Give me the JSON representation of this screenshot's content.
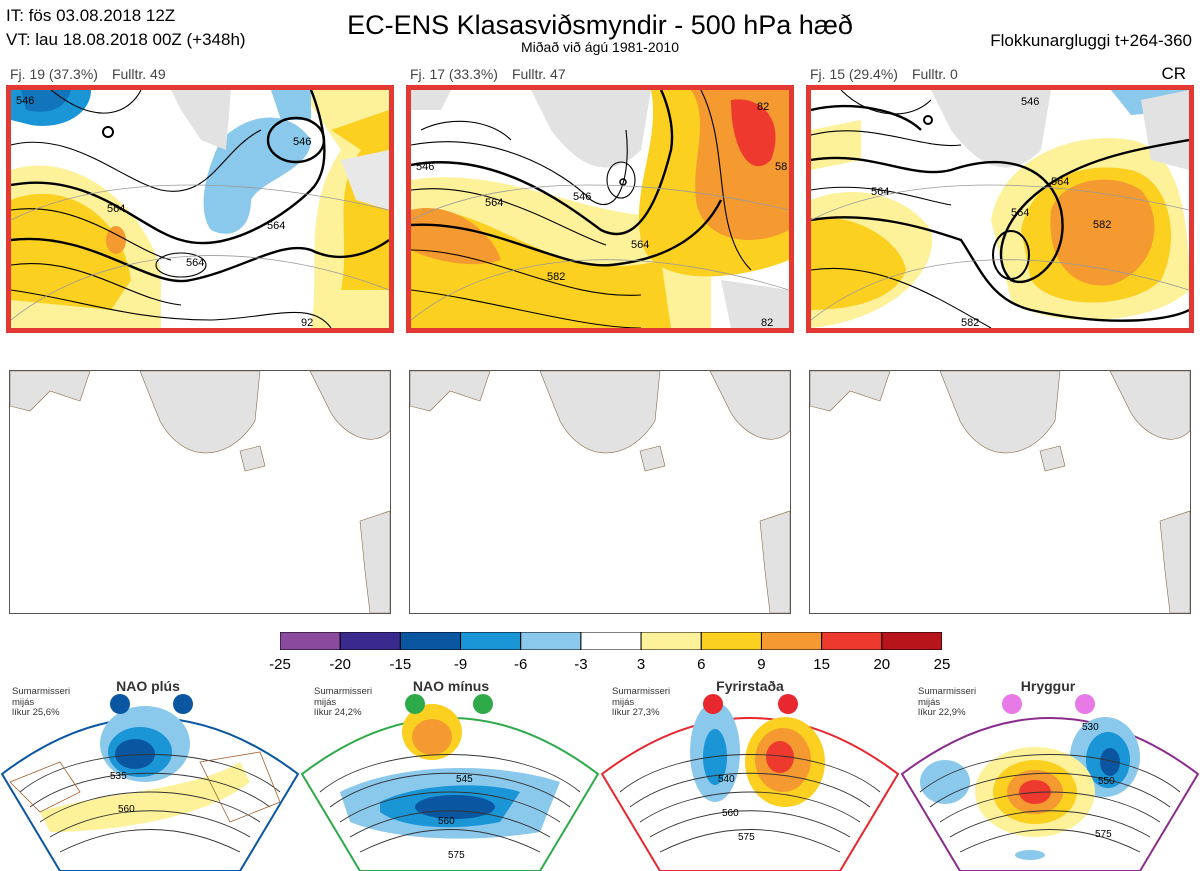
{
  "header": {
    "it_line": "IT: fös 03.08.2018 12Z",
    "vt_line": "VT: lau 18.08.2018 00Z  (+348h)",
    "title": "EC-ENS Klasasviðsmyndir - 500 hPa hæð",
    "subtitle": "Miðað við ágú 1981-2010",
    "window": "Flokkunargluggi t+264-360",
    "cr": "CR"
  },
  "clusters": [
    {
      "fj": "Fj. 19 (37.3%)",
      "fulltr": "Fulltr. 49",
      "labels": [
        "546",
        "564",
        "564",
        "564",
        "546",
        "92"
      ]
    },
    {
      "fj": "Fj. 17 (33.3%)",
      "fulltr": "Fulltr. 47",
      "labels": [
        "546",
        "564",
        "546",
        "564",
        "582",
        "82",
        "58",
        "82"
      ]
    },
    {
      "fj": "Fj. 15 (29.4%)",
      "fulltr": "Fulltr. 0",
      "labels": [
        "546",
        "564",
        "564",
        "564",
        "582",
        "582"
      ]
    }
  ],
  "colorbar": {
    "ticks": [
      "-25",
      "-20",
      "-15",
      "-9",
      "-6",
      "-3",
      "3",
      "6",
      "9",
      "15",
      "20",
      "25"
    ],
    "colors": [
      "#8a4a9e",
      "#3b2a8e",
      "#0a56a0",
      "#1a95d6",
      "#8ac8ec",
      "#ffffff",
      "#fdf29a",
      "#fbd020",
      "#f59a30",
      "#ee3a2e",
      "#b8141b"
    ]
  },
  "regimes": [
    {
      "name": "NAO plús",
      "note": [
        "Sumarmisseri",
        "mijás",
        "líkur 25,6%"
      ],
      "color": "#0a56a0",
      "labels": [
        "535",
        "560"
      ]
    },
    {
      "name": "NAO mínus",
      "note": [
        "Sumarmisseri",
        "mijás",
        "líkur 24,2%"
      ],
      "color": "#2eaa4a",
      "labels": [
        "545",
        "560",
        "575"
      ]
    },
    {
      "name": "Fyrirstaða",
      "note": [
        "Sumarmisseri",
        "mijás",
        "líkur 27,3%"
      ],
      "color": "#e8272e",
      "labels": [
        "540",
        "560",
        "575"
      ]
    },
    {
      "name": "Hryggur",
      "note": [
        "Sumarmisseri",
        "mijás",
        "líkur 22,9%"
      ],
      "color": "#e87ae8",
      "labels": [
        "530",
        "550",
        "575"
      ]
    }
  ]
}
